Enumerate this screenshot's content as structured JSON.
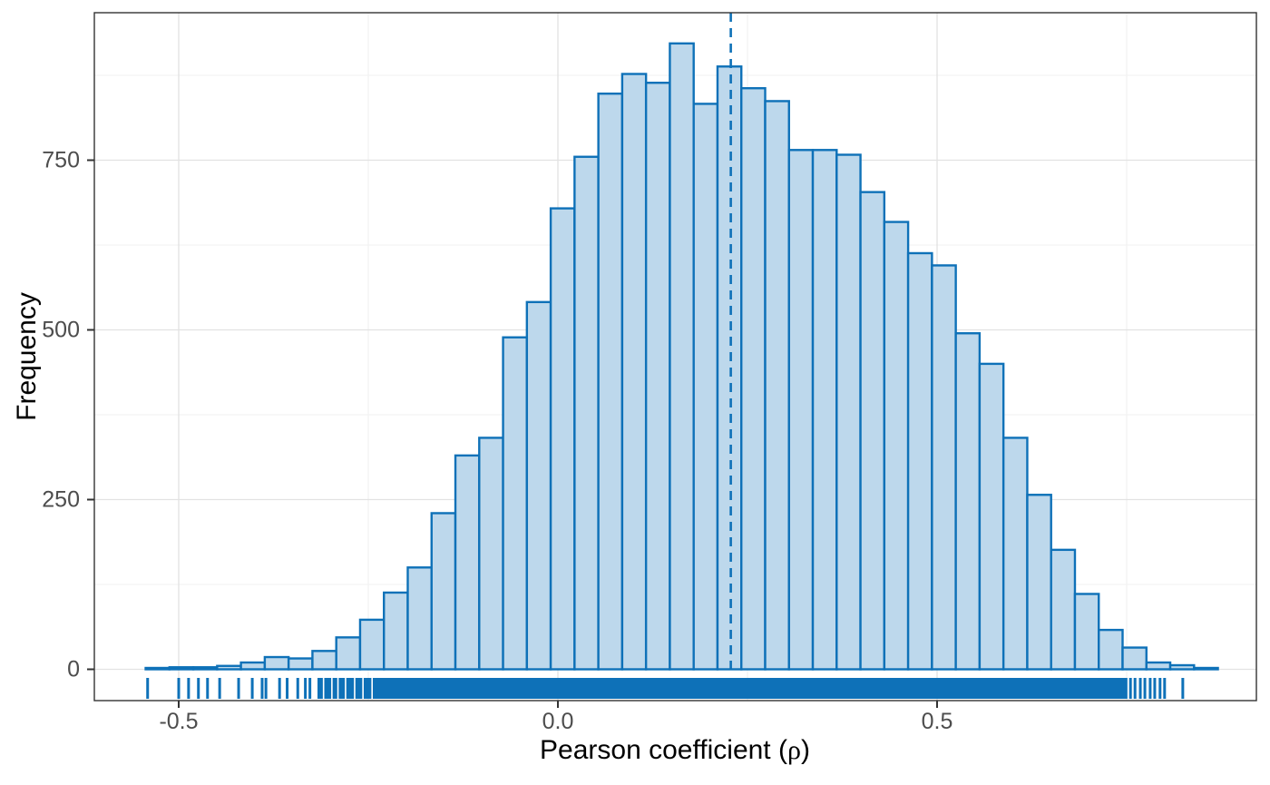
{
  "figure": {
    "background": "#ffffff",
    "kind": "ggplot-style histogram with rug and mean line"
  },
  "chart_data": {
    "type": "bar",
    "subtype": "histogram",
    "title": "",
    "xlabel": "Pearson coefficient (ρ)",
    "xlabel_prefix": "Pearson coefficient (",
    "xlabel_symbol": "ρ",
    "xlabel_suffix": ")",
    "ylabel": "Frequency",
    "xlim": [
      -0.611,
      0.921
    ],
    "ylim": [
      -46,
      967
    ],
    "x_ticks": [
      -0.5,
      0.0,
      0.5
    ],
    "x_tick_labels": [
      "-0.5",
      "0.0",
      "0.5"
    ],
    "x_minor_gridlines": [
      -0.25,
      0.25,
      0.75
    ],
    "y_ticks": [
      0,
      250,
      500,
      750
    ],
    "y_tick_labels": [
      "0",
      "250",
      "500",
      "750"
    ],
    "y_minor_gridlines": [
      125,
      375,
      625,
      875
    ],
    "grid": "on",
    "legend": "none",
    "bin_start": -0.5436,
    "bin_width": 0.03142,
    "counts": [
      2,
      3,
      3,
      5,
      10,
      18,
      16,
      27,
      47,
      73,
      113,
      150,
      230,
      315,
      341,
      489,
      541,
      679,
      755,
      848,
      877,
      864,
      922,
      833,
      888,
      856,
      837,
      765,
      765,
      758,
      703,
      659,
      613,
      595,
      495,
      450,
      341,
      257,
      176,
      111,
      58,
      32,
      10,
      6,
      2
    ],
    "mean_line_x": 0.228,
    "mean_line_style": "dashed",
    "rug": {
      "band_start": -0.317,
      "band_end": 0.751,
      "left_ticks": [
        -0.541,
        -0.5,
        -0.487,
        -0.474,
        -0.462,
        -0.446,
        -0.421,
        -0.403,
        -0.39,
        -0.385,
        -0.367,
        -0.357,
        -0.343,
        -0.333,
        -0.327
      ],
      "band_gaps": [
        -0.309,
        -0.298,
        -0.29,
        -0.28,
        -0.268,
        -0.257,
        -0.245
      ],
      "right_ticks": [
        0.755,
        0.761,
        0.768,
        0.774,
        0.781,
        0.787,
        0.794,
        0.8,
        0.824
      ]
    },
    "colors": {
      "bar_fill": "#bdd8ec",
      "bar_stroke": "#0e71b8",
      "mean_line": "#0e71b8",
      "rug": "#0e71b8",
      "grid_major": "#e2e2e2",
      "grid_minor": "#f0f0f0",
      "panel_border": "#333333",
      "tick_mark": "#333333",
      "tick_label": "#4d4d4d",
      "axis_title": "#000000",
      "panel_background": "#ffffff"
    }
  }
}
